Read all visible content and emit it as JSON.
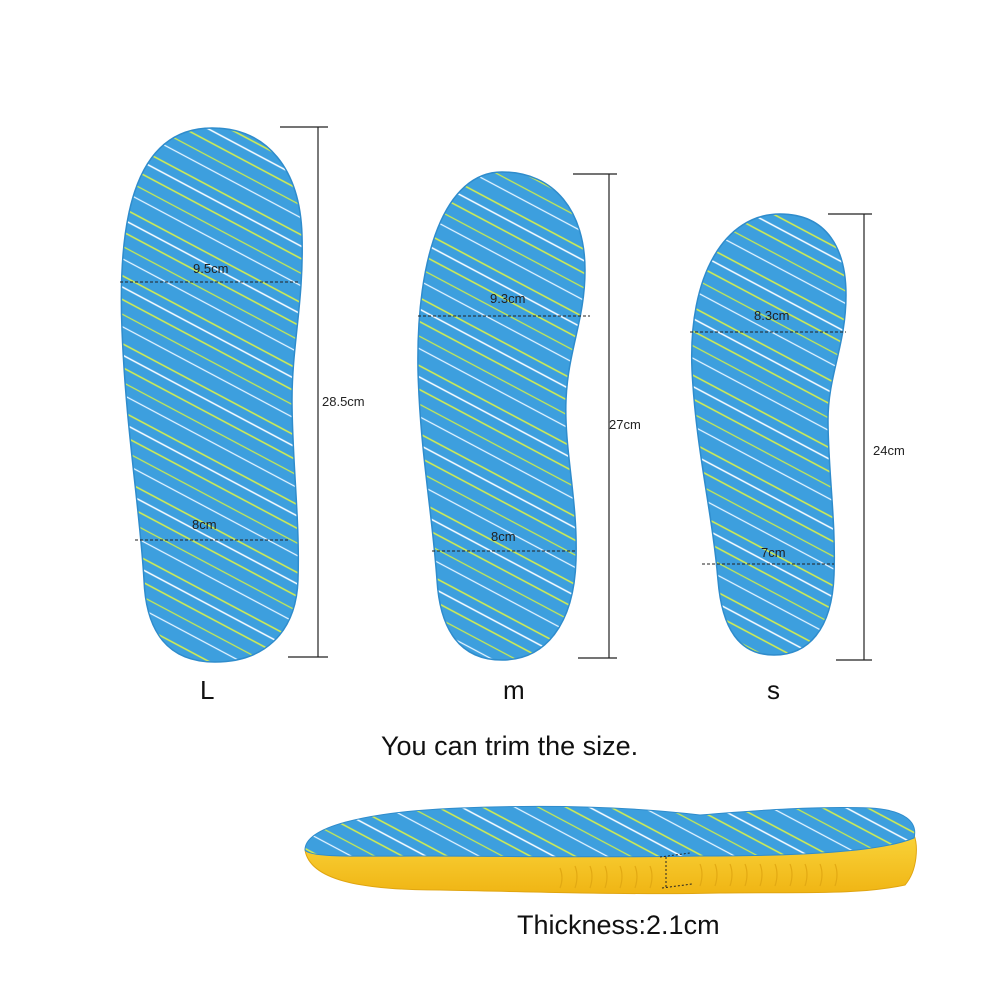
{
  "insoles": [
    {
      "size": "L",
      "length": "28.5cm",
      "forefoot_width": "9.5cm",
      "heel_width": "8cm"
    },
    {
      "size": "m",
      "length": "27cm",
      "forefoot_width": "9.3cm",
      "heel_width": "8cm"
    },
    {
      "size": "s",
      "length": "24cm",
      "forefoot_width": "8.3cm",
      "heel_width": "7cm"
    }
  ],
  "trim_note": "You can trim the size.",
  "thickness": "Thickness:2.1cm",
  "colors": {
    "insole_blue": "#3d9fde",
    "stripe_yellow": "#d8f04a",
    "stripe_white": "#ffffff",
    "sole_yellow": "#f6c51c",
    "measure_line": "#222222"
  }
}
